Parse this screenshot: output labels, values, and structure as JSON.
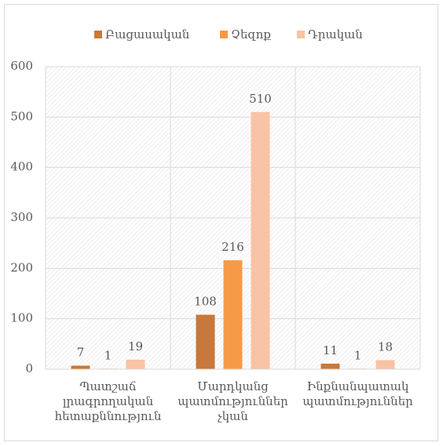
{
  "chart_data": {
    "type": "bar",
    "categories": [
      "Պատշաճ լրագրողական հետաքննություն",
      "Մարդկանց պատմություններ չկան",
      "Ինքնանպատակ պատմություններ"
    ],
    "series": [
      {
        "name": "Բացասական",
        "color": "#c8783a",
        "values": [
          7,
          108,
          11
        ]
      },
      {
        "name": "Չեզոք",
        "color": "#f79a48",
        "values": [
          1,
          216,
          1
        ]
      },
      {
        "name": "Դրական",
        "color": "#f9c3a5",
        "values": [
          19,
          510,
          18
        ]
      }
    ],
    "ylim": [
      0,
      600
    ],
    "yticks": [
      0,
      100,
      200,
      300,
      400,
      500,
      600
    ],
    "grid": true,
    "legend": "top"
  }
}
